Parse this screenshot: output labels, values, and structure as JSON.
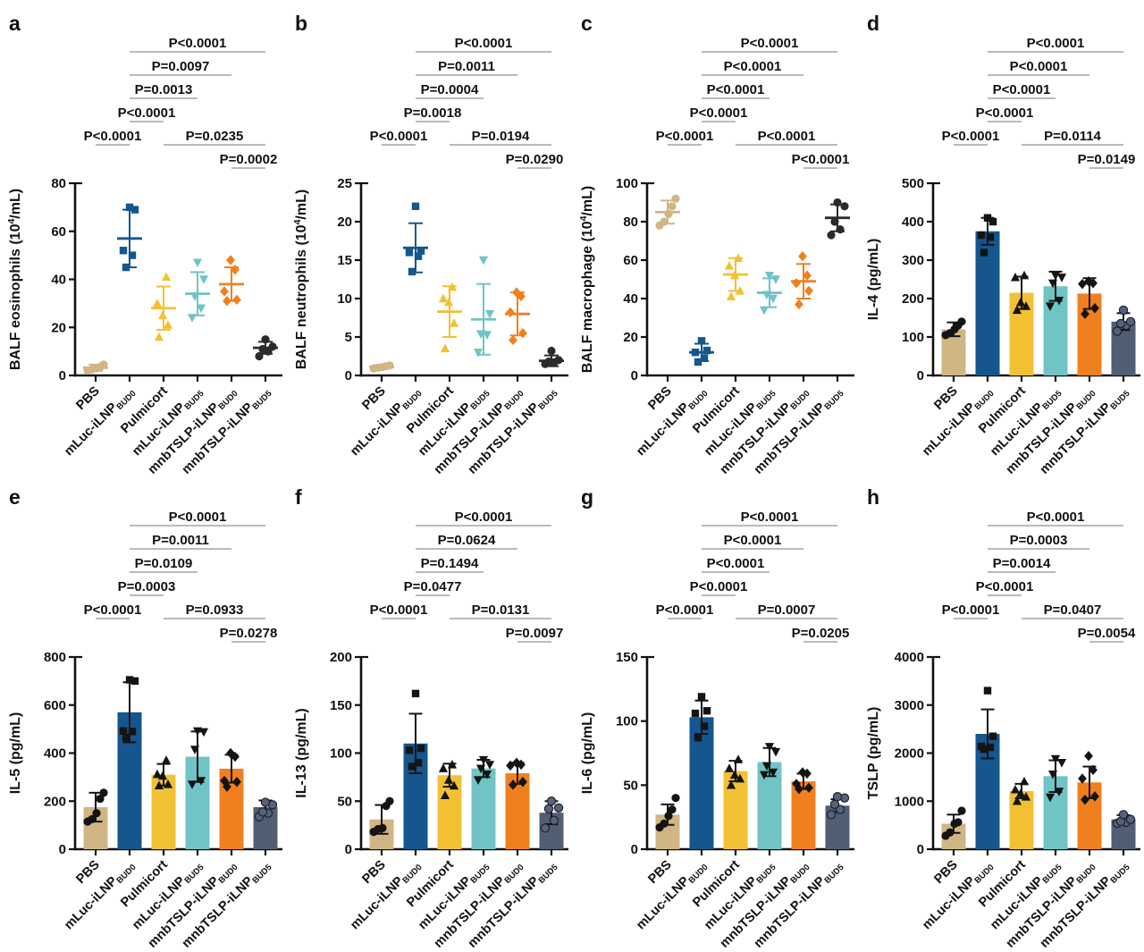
{
  "groups": {
    "labels": [
      {
        "text": "PBS",
        "sub": ""
      },
      {
        "text": "mLuc-iLNP",
        "sub": "BUD0"
      },
      {
        "text": "Pulmicort",
        "sub": ""
      },
      {
        "text": "mLuc-iLNP",
        "sub": "BUD5"
      },
      {
        "text": "mnbTSLP-iLNP",
        "sub": "BUD0"
      },
      {
        "text": "mnbTSLP-iLNP",
        "sub": "BUD5"
      }
    ],
    "marker_shapes": [
      "circle",
      "square",
      "tri-up",
      "tri-down",
      "diamond",
      "circle"
    ],
    "bar_colors": [
      "#D2B584",
      "#15568E",
      "#F2C133",
      "#70C4C6",
      "#F0801F",
      "#515E73"
    ],
    "scatter_colors": [
      "#D2B584",
      "#15568E",
      "#F2C133",
      "#70C4C6",
      "#F0801F",
      "#2B2B2B"
    ],
    "dot_color": "#141414",
    "last_dot_fill": "#57627A",
    "last_dot_stroke": "#1A212E",
    "annotation_line_color": "#909090"
  },
  "pvalue_spans": {
    "rows": [
      0,
      1,
      2,
      3,
      4,
      4,
      5
    ],
    "pairs": [
      [
        1,
        5
      ],
      [
        1,
        4
      ],
      [
        1,
        3
      ],
      [
        1,
        2
      ],
      [
        0,
        1
      ],
      [
        2,
        5
      ],
      [
        4,
        5
      ]
    ]
  },
  "chart_data": [
    {
      "panel": "a",
      "type": "scatter",
      "ylabel": "BALF eosinophils (10^4/mL)",
      "ylim": [
        0,
        80
      ],
      "yticks": [
        0,
        20,
        40,
        60,
        80
      ],
      "pvalues": [
        "P<0.0001",
        "P=0.0097",
        "P=0.0013",
        "P<0.0001",
        "P<0.0001",
        "P=0.0235",
        "P=0.0002"
      ],
      "series": [
        {
          "name": "PBS",
          "mean": 3.2,
          "sd": 1.3,
          "values": [
            2,
            2.5,
            3,
            3.5,
            4.5
          ]
        },
        {
          "name": "mLuc-iLNP BUD0",
          "mean": 57,
          "sd": 12,
          "values": [
            45,
            50,
            52,
            69,
            70
          ]
        },
        {
          "name": "Pulmicort",
          "mean": 28,
          "sd": 9,
          "values": [
            16,
            21,
            25,
            30,
            41
          ]
        },
        {
          "name": "mLuc-iLNP BUD5",
          "mean": 34,
          "sd": 9,
          "values": [
            24,
            28,
            33,
            40,
            47
          ]
        },
        {
          "name": "mnbTSLP-iLNP BUD0",
          "mean": 38,
          "sd": 7,
          "values": [
            31,
            31.5,
            35,
            44,
            48
          ]
        },
        {
          "name": "mnbTSLP-iLNP BUD5",
          "mean": 11.5,
          "sd": 2.5,
          "values": [
            8,
            10,
            11,
            12,
            15
          ]
        }
      ]
    },
    {
      "panel": "b",
      "type": "scatter",
      "ylabel": "BALF neutrophils (10^4/mL)",
      "ylim": [
        0,
        25
      ],
      "yticks": [
        0,
        5,
        10,
        15,
        20,
        25
      ],
      "pvalues": [
        "P<0.0001",
        "P=0.0011",
        "P=0.0004",
        "P=0.0018",
        "P<0.0001",
        "P=0.0194",
        "P=0.0290"
      ],
      "series": [
        {
          "name": "PBS",
          "mean": 1.1,
          "sd": 0.25,
          "values": [
            0.9,
            1.0,
            1.1,
            1.2,
            1.3
          ]
        },
        {
          "name": "mLuc-iLNP BUD0",
          "mean": 16.6,
          "sd": 3.2,
          "values": [
            13.5,
            15.5,
            16,
            16.2,
            22
          ]
        },
        {
          "name": "Pulmicort",
          "mean": 8.3,
          "sd": 3.3,
          "values": [
            3.5,
            6.8,
            9.5,
            10,
            11.5
          ]
        },
        {
          "name": "mLuc-iLNP BUD5",
          "mean": 7.3,
          "sd": 4.6,
          "values": [
            3,
            5.3,
            5.4,
            8,
            15
          ]
        },
        {
          "name": "mnbTSLP-iLNP BUD0",
          "mean": 8.0,
          "sd": 2.8,
          "values": [
            4.6,
            5.5,
            8.2,
            10.3,
            10.8
          ]
        },
        {
          "name": "mnbTSLP-iLNP BUD5",
          "mean": 1.9,
          "sd": 0.7,
          "values": [
            1.5,
            1.7,
            1.8,
            2.0,
            3.2
          ]
        }
      ]
    },
    {
      "panel": "c",
      "type": "scatter",
      "ylabel": "BALF macrophage (10^4/mL)",
      "ylim": [
        0,
        100
      ],
      "yticks": [
        0,
        20,
        40,
        60,
        80,
        100
      ],
      "pvalues": [
        "P<0.0001",
        "P<0.0001",
        "P<0.0001",
        "P<0.0001",
        "P<0.0001",
        "P<0.0001",
        "P<0.0001"
      ],
      "series": [
        {
          "name": "PBS",
          "mean": 85,
          "sd": 6,
          "values": [
            78,
            80,
            84,
            88,
            92
          ]
        },
        {
          "name": "mLuc-iLNP BUD0",
          "mean": 12,
          "sd": 4.5,
          "values": [
            7,
            9,
            12,
            13,
            18
          ]
        },
        {
          "name": "Pulmicort",
          "mean": 52.5,
          "sd": 8.5,
          "values": [
            41,
            44,
            52,
            57,
            61
          ]
        },
        {
          "name": "mLuc-iLNP BUD5",
          "mean": 43,
          "sd": 7.5,
          "values": [
            34,
            40,
            42,
            50,
            52
          ]
        },
        {
          "name": "mnbTSLP-iLNP BUD0",
          "mean": 49,
          "sd": 9,
          "values": [
            37,
            44,
            48,
            52,
            62
          ]
        },
        {
          "name": "mnbTSLP-iLNP BUD5",
          "mean": 82,
          "sd": 7,
          "values": [
            73,
            76,
            80,
            88,
            90
          ]
        }
      ]
    },
    {
      "panel": "d",
      "type": "bar",
      "ylabel": "IL-4 (pg/mL)",
      "ylim": [
        0,
        500
      ],
      "yticks": [
        0,
        100,
        200,
        300,
        400,
        500
      ],
      "pvalues": [
        "P<0.0001",
        "P<0.0001",
        "P<0.0001",
        "P<0.0001",
        "P<0.0001",
        "P=0.0114",
        "P=0.0149"
      ],
      "series": [
        {
          "name": "PBS",
          "mean": 120,
          "sd": 18,
          "values": [
            105,
            110,
            120,
            130,
            140
          ]
        },
        {
          "name": "mLuc-iLNP BUD0",
          "mean": 375,
          "sd": 35,
          "values": [
            320,
            360,
            365,
            400,
            410
          ]
        },
        {
          "name": "Pulmicort",
          "mean": 215,
          "sd": 42,
          "values": [
            170,
            180,
            190,
            255,
            260
          ]
        },
        {
          "name": "mLuc-iLNP BUD5",
          "mean": 232,
          "sd": 38,
          "values": [
            180,
            195,
            240,
            255,
            260
          ]
        },
        {
          "name": "mnbTSLP-iLNP BUD0",
          "mean": 213,
          "sd": 40,
          "values": [
            160,
            175,
            238,
            240,
            245
          ]
        },
        {
          "name": "mnbTSLP-iLNP BUD5",
          "mean": 140,
          "sd": 22,
          "values": [
            115,
            130,
            135,
            140,
            170
          ]
        }
      ]
    },
    {
      "panel": "e",
      "type": "bar",
      "ylabel": "IL-5 (pg/mL)",
      "ylim": [
        0,
        800
      ],
      "yticks": [
        0,
        200,
        400,
        600,
        800
      ],
      "pvalues": [
        "P<0.0001",
        "P=0.0011",
        "P=0.0109",
        "P=0.0003",
        "P<0.0001",
        "P=0.0933",
        "P=0.0278"
      ],
      "series": [
        {
          "name": "PBS",
          "mean": 175,
          "sd": 60,
          "values": [
            115,
            125,
            150,
            210,
            235
          ]
        },
        {
          "name": "mLuc-iLNP BUD0",
          "mean": 570,
          "sd": 125,
          "values": [
            465,
            490,
            492,
            700,
            705
          ]
        },
        {
          "name": "Pulmicort",
          "mean": 310,
          "sd": 45,
          "values": [
            265,
            270,
            305,
            312,
            370
          ]
        },
        {
          "name": "mLuc-iLNP BUD5",
          "mean": 385,
          "sd": 105,
          "values": [
            270,
            285,
            415,
            488,
            492
          ]
        },
        {
          "name": "mnbTSLP-iLNP BUD0",
          "mean": 335,
          "sd": 58,
          "values": [
            260,
            280,
            285,
            385,
            400
          ]
        },
        {
          "name": "mnbTSLP-iLNP BUD5",
          "mean": 175,
          "sd": 28,
          "values": [
            135,
            150,
            155,
            185,
            195
          ]
        }
      ]
    },
    {
      "panel": "f",
      "type": "bar",
      "ylabel": "IL-13 (pg/mL)",
      "ylim": [
        0,
        200
      ],
      "yticks": [
        0,
        50,
        100,
        150,
        200
      ],
      "pvalues": [
        "P<0.0001",
        "P=0.0624",
        "P=0.1494",
        "P=0.0477",
        "P<0.0001",
        "P=0.0131",
        "P=0.0097"
      ],
      "series": [
        {
          "name": "PBS",
          "mean": 31,
          "sd": 15,
          "values": [
            18,
            21,
            22,
            45,
            50
          ]
        },
        {
          "name": "mLuc-iLNP BUD0",
          "mean": 110,
          "sd": 31,
          "values": [
            86,
            90,
            103,
            105,
            162
          ]
        },
        {
          "name": "Pulmicort",
          "mean": 77,
          "sd": 12,
          "values": [
            56,
            66,
            72,
            84,
            88
          ]
        },
        {
          "name": "mLuc-iLNP BUD5",
          "mean": 84,
          "sd": 9,
          "values": [
            72,
            78,
            84,
            88,
            93
          ]
        },
        {
          "name": "mnbTSLP-iLNP BUD0",
          "mean": 79,
          "sd": 11,
          "values": [
            67,
            70,
            87,
            88,
            90
          ]
        },
        {
          "name": "mnbTSLP-iLNP BUD5",
          "mean": 38,
          "sd": 12,
          "values": [
            22,
            30,
            42,
            43,
            50
          ]
        }
      ]
    },
    {
      "panel": "g",
      "type": "bar",
      "ylabel": "IL-6 (pg/mL)",
      "ylim": [
        0,
        150
      ],
      "yticks": [
        0,
        50,
        100,
        150
      ],
      "pvalues": [
        "P<0.0001",
        "P<0.0001",
        "P<0.0001",
        "P<0.0001",
        "P<0.0001",
        "P=0.0007",
        "P=0.0205"
      ],
      "series": [
        {
          "name": "PBS",
          "mean": 27,
          "sd": 8,
          "values": [
            17,
            20,
            26,
            31,
            40
          ]
        },
        {
          "name": "mLuc-iLNP BUD0",
          "mean": 103,
          "sd": 13,
          "values": [
            87,
            96,
            106,
            108,
            119
          ]
        },
        {
          "name": "Pulmicort",
          "mean": 61,
          "sd": 8,
          "values": [
            50,
            55,
            58,
            63,
            70
          ]
        },
        {
          "name": "mLuc-iLNP BUD5",
          "mean": 68,
          "sd": 11,
          "values": [
            58,
            60,
            65,
            76,
            80
          ]
        },
        {
          "name": "mnbTSLP-iLNP BUD0",
          "mean": 53,
          "sd": 6,
          "values": [
            47,
            48,
            51,
            59,
            60
          ]
        },
        {
          "name": "mnbTSLP-iLNP BUD5",
          "mean": 34,
          "sd": 5,
          "values": [
            27,
            31,
            35,
            40,
            41
          ]
        }
      ]
    },
    {
      "panel": "h",
      "type": "bar",
      "ylabel": "TSLP (pg/mL)",
      "ylim": [
        0,
        4000
      ],
      "yticks": [
        0,
        1000,
        2000,
        3000,
        4000
      ],
      "pvalues": [
        "P<0.0001",
        "P=0.0003",
        "P=0.0014",
        "P<0.0001",
        "P<0.0001",
        "P=0.0407",
        "P=0.0054"
      ],
      "series": [
        {
          "name": "PBS",
          "mean": 530,
          "sd": 190,
          "values": [
            280,
            350,
            530,
            560,
            800
          ]
        },
        {
          "name": "mLuc-iLNP BUD0",
          "mean": 2400,
          "sd": 510,
          "values": [
            2080,
            2120,
            2140,
            2350,
            3300
          ]
        },
        {
          "name": "Pulmicort",
          "mean": 1210,
          "sd": 150,
          "values": [
            1000,
            1090,
            1160,
            1240,
            1410
          ]
        },
        {
          "name": "mLuc-iLNP BUD5",
          "mean": 1520,
          "sd": 330,
          "values": [
            1080,
            1200,
            1560,
            1800,
            1880
          ]
        },
        {
          "name": "mnbTSLP-iLNP BUD0",
          "mean": 1390,
          "sd": 330,
          "values": [
            1030,
            1100,
            1470,
            1650,
            1940
          ]
        },
        {
          "name": "mnbTSLP-iLNP BUD5",
          "mean": 620,
          "sd": 90,
          "values": [
            540,
            560,
            580,
            620,
            720
          ]
        }
      ]
    }
  ]
}
